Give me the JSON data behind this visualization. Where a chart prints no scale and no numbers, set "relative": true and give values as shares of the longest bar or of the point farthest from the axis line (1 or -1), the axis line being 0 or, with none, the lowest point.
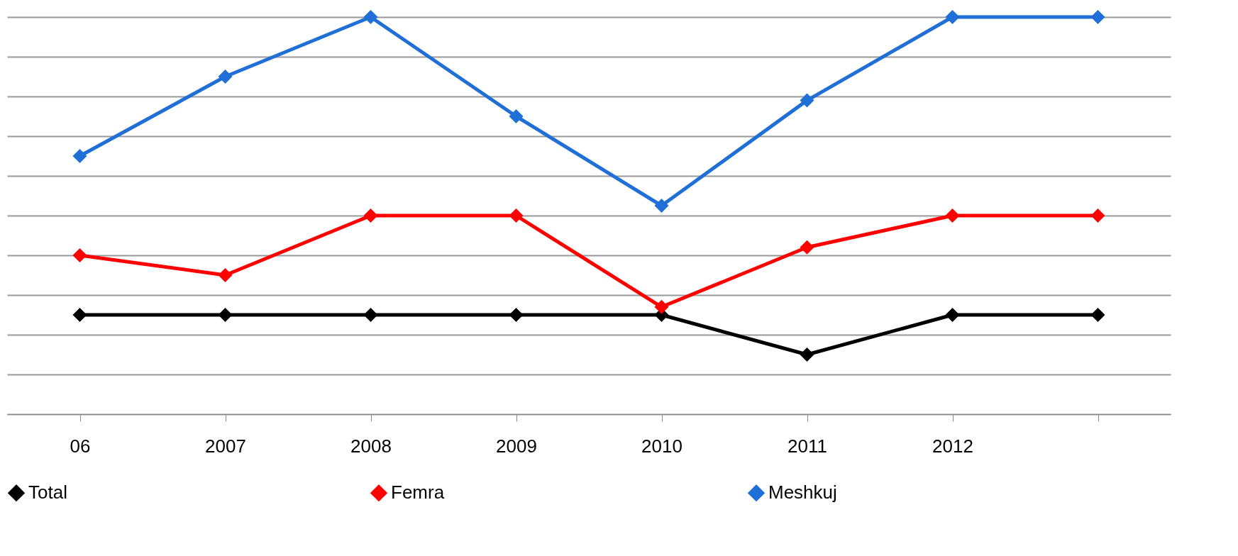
{
  "chart_data": {
    "type": "line",
    "relative": true,
    "categories": [
      "06",
      "2007",
      "2008",
      "2009",
      "2010",
      "2011",
      "2012",
      null
    ],
    "series": [
      {
        "name": "Total",
        "color": "#000000",
        "values": [
          0.25,
          0.25,
          0.25,
          0.25,
          0.25,
          0.15,
          0.25,
          0.25
        ]
      },
      {
        "name": "Femra",
        "color": "#ff0000",
        "values": [
          0.4,
          0.35,
          0.5,
          0.5,
          0.27,
          0.42,
          0.5,
          0.5
        ]
      },
      {
        "name": "Meshkuj",
        "color": "#1f6fd6",
        "values": [
          0.65,
          0.85,
          1,
          0.75,
          0.525,
          0.79,
          1,
          1
        ]
      }
    ],
    "grid": "y",
    "legend": "bottom",
    "marker": "diamond",
    "line_style": "solid"
  }
}
